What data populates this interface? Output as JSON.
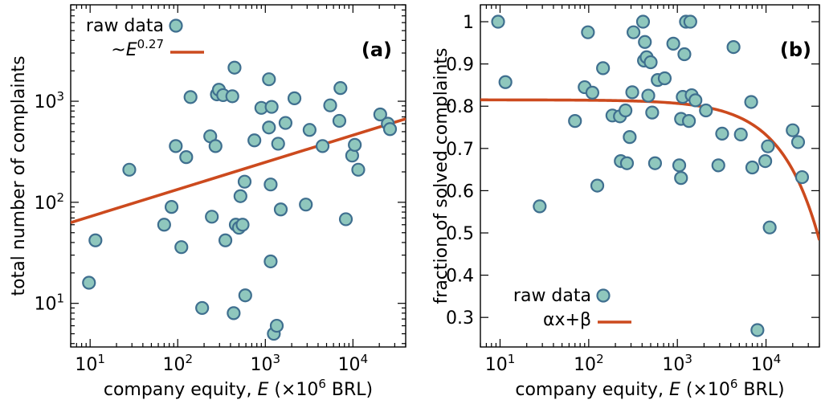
{
  "chart_data": [
    {
      "type": "scatter",
      "panel_label": "(a)",
      "xlabel": {
        "prefix": "company equity, ",
        "var": "E",
        "unit_pre": " (×10",
        "unit_exp": "6",
        "unit_post": " BRL)"
      },
      "ylabel": "total number of complaints",
      "x_scale": "log",
      "y_scale": "log",
      "xlim": [
        6,
        40000
      ],
      "ylim": [
        3.7,
        9000
      ],
      "xticks": [
        {
          "v": 10,
          "base": "10",
          "exp": "1"
        },
        {
          "v": 100,
          "base": "10",
          "exp": "2"
        },
        {
          "v": 1000,
          "base": "10",
          "exp": "3"
        },
        {
          "v": 10000,
          "base": "10",
          "exp": "4"
        }
      ],
      "yticks": [
        {
          "v": 10,
          "base": "10",
          "exp": "1"
        },
        {
          "v": 100,
          "base": "10",
          "exp": "2"
        },
        {
          "v": 1000,
          "base": "10",
          "exp": "3"
        }
      ],
      "legend": [
        {
          "label": "raw data",
          "kind": "marker"
        },
        {
          "label_prefix": "~",
          "label_var": "E",
          "label_exp": "0.27",
          "kind": "line"
        }
      ],
      "series": [
        {
          "name": "raw data",
          "points": [
            [
              9.7,
              16
            ],
            [
              11.5,
              42
            ],
            [
              28,
              210
            ],
            [
              70,
              60
            ],
            [
              85,
              90
            ],
            [
              95,
              360
            ],
            [
              110,
              36
            ],
            [
              125,
              280
            ],
            [
              140,
              1100
            ],
            [
              190,
              9
            ],
            [
              235,
              450
            ],
            [
              245,
              72
            ],
            [
              270,
              360
            ],
            [
              280,
              1170
            ],
            [
              295,
              1300
            ],
            [
              330,
              1150
            ],
            [
              350,
              42
            ],
            [
              420,
              1120
            ],
            [
              435,
              8
            ],
            [
              445,
              2150
            ],
            [
              460,
              60
            ],
            [
              500,
              56
            ],
            [
              520,
              115
            ],
            [
              550,
              60
            ],
            [
              580,
              160
            ],
            [
              590,
              12
            ],
            [
              750,
              410
            ],
            [
              900,
              860
            ],
            [
              1100,
              550
            ],
            [
              1100,
              1650
            ],
            [
              1150,
              150
            ],
            [
              1150,
              26
            ],
            [
              1180,
              880
            ],
            [
              1250,
              5
            ],
            [
              1350,
              6
            ],
            [
              1400,
              380
            ],
            [
              1500,
              85
            ],
            [
              1700,
              610
            ],
            [
              2150,
              1070
            ],
            [
              2900,
              95
            ],
            [
              3200,
              520
            ],
            [
              4500,
              360
            ],
            [
              5500,
              910
            ],
            [
              7000,
              640
            ],
            [
              7200,
              1350
            ],
            [
              8300,
              68
            ],
            [
              9800,
              290
            ],
            [
              10500,
              370
            ],
            [
              11500,
              210
            ],
            [
              20500,
              740
            ],
            [
              25000,
              600
            ],
            [
              26500,
              530
            ]
          ]
        },
        {
          "name": "~E^0.27 fit",
          "kind": "fit",
          "x": [
            6,
            40000
          ],
          "y": [
            63,
            670
          ]
        }
      ]
    },
    {
      "type": "scatter",
      "panel_label": "(b)",
      "xlabel": {
        "prefix": "company equity, ",
        "var": "E",
        "unit_pre": " (×10",
        "unit_exp": "6",
        "unit_post": " BRL)"
      },
      "ylabel": "fraction of solved complaints",
      "x_scale": "log",
      "y_scale": "linear",
      "xlim": [
        6,
        40000
      ],
      "ylim": [
        0.23,
        1.04
      ],
      "xticks": [
        {
          "v": 10,
          "base": "10",
          "exp": "1"
        },
        {
          "v": 100,
          "base": "10",
          "exp": "2"
        },
        {
          "v": 1000,
          "base": "10",
          "exp": "3"
        },
        {
          "v": 10000,
          "base": "10",
          "exp": "4"
        }
      ],
      "yticks": [
        {
          "v": 0.3,
          "label": "0.3"
        },
        {
          "v": 0.4,
          "label": "0.4"
        },
        {
          "v": 0.5,
          "label": "0.5"
        },
        {
          "v": 0.6,
          "label": "0.6"
        },
        {
          "v": 0.7,
          "label": "0.7"
        },
        {
          "v": 0.8,
          "label": "0.8"
        },
        {
          "v": 0.9,
          "label": "0.9"
        },
        {
          "v": 1.0,
          "label": "1"
        }
      ],
      "legend": [
        {
          "label": "raw data",
          "kind": "marker"
        },
        {
          "label": "αx+β",
          "kind": "line"
        }
      ],
      "series": [
        {
          "name": "raw data",
          "points": [
            [
              9.5,
              1.0
            ],
            [
              11.5,
              0.857
            ],
            [
              28,
              0.563
            ],
            [
              70,
              0.765
            ],
            [
              90,
              0.845
            ],
            [
              98,
              0.975
            ],
            [
              110,
              0.832
            ],
            [
              125,
              0.612
            ],
            [
              145,
              0.89
            ],
            [
              185,
              0.778
            ],
            [
              225,
              0.776
            ],
            [
              230,
              0.67
            ],
            [
              260,
              0.79
            ],
            [
              270,
              0.665
            ],
            [
              290,
              0.727
            ],
            [
              310,
              0.833
            ],
            [
              320,
              0.975
            ],
            [
              410,
              1.0
            ],
            [
              420,
              0.908
            ],
            [
              430,
              0.952
            ],
            [
              450,
              0.916
            ],
            [
              470,
              0.825
            ],
            [
              500,
              0.904
            ],
            [
              520,
              0.785
            ],
            [
              560,
              0.665
            ],
            [
              600,
              0.862
            ],
            [
              720,
              0.866
            ],
            [
              900,
              0.948
            ],
            [
              1050,
              0.66
            ],
            [
              1100,
              0.63
            ],
            [
              1100,
              0.77
            ],
            [
              1150,
              0.822
            ],
            [
              1200,
              0.923
            ],
            [
              1250,
              1.0
            ],
            [
              1350,
              0.765
            ],
            [
              1400,
              1.0
            ],
            [
              1450,
              0.826
            ],
            [
              1600,
              0.814
            ],
            [
              2100,
              0.79
            ],
            [
              2900,
              0.66
            ],
            [
              3200,
              0.735
            ],
            [
              4300,
              0.94
            ],
            [
              5200,
              0.733
            ],
            [
              6800,
              0.81
            ],
            [
              7000,
              0.655
            ],
            [
              8000,
              0.27
            ],
            [
              9800,
              0.67
            ],
            [
              10500,
              0.705
            ],
            [
              11000,
              0.513
            ],
            [
              20000,
              0.743
            ],
            [
              23000,
              0.715
            ],
            [
              25500,
              0.632
            ]
          ]
        },
        {
          "name": "αx+β fit",
          "kind": "fit",
          "alpha": -8.3e-06,
          "beta": 0.815
        }
      ]
    }
  ]
}
